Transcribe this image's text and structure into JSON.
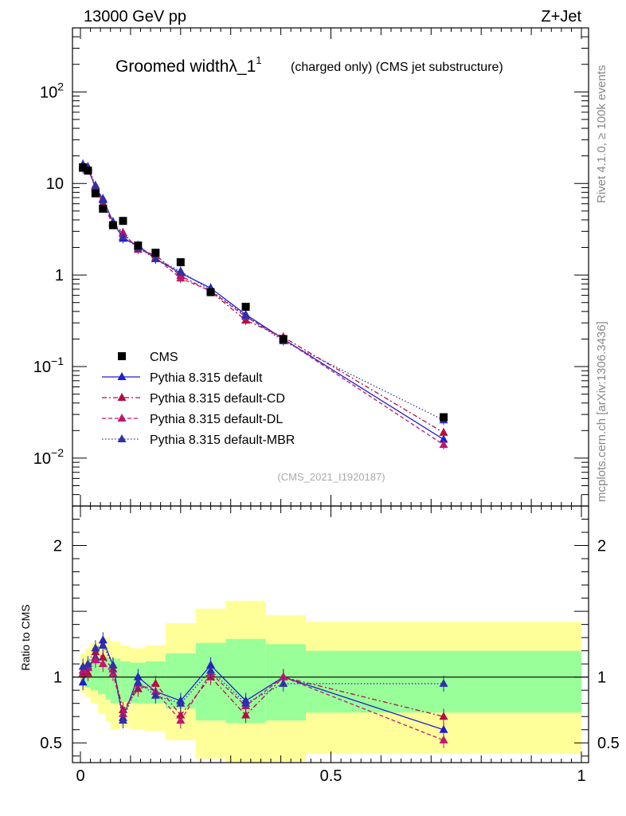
{
  "header": {
    "left": "13000 GeV pp",
    "right": "Z+Jet"
  },
  "title": {
    "main": "Groomed widthλ_1",
    "sup": "1",
    "sub": "(charged only) (CMS jet substructure)"
  },
  "side_labels": {
    "top": "Rivet 4.1.0, ≥ 100k events",
    "bottom": "mcplots.cern.ch [arXiv:1306.3436]"
  },
  "analysis_id": "(CMS_2021_I1920187)",
  "colors": {
    "cms": "#000000",
    "default": "#1f1fcc",
    "cd": "#b01040",
    "dl": "#c01870",
    "mbr": "#3030a8",
    "band_yellow": "#ffff99",
    "band_green": "#99ff99"
  },
  "chart_data": [
    {
      "type": "scatter",
      "panel": "main",
      "ylog": true,
      "xlim": [
        0,
        1
      ],
      "ylim": [
        0.003,
        500
      ],
      "y_tick_labels": [
        "10^-2",
        "10^-1",
        "1",
        "10",
        "10^2"
      ],
      "x": [
        0.005,
        0.015,
        0.03,
        0.045,
        0.065,
        0.085,
        0.115,
        0.15,
        0.2,
        0.26,
        0.33,
        0.405,
        0.725
      ],
      "series": [
        {
          "name": "CMS",
          "style": "square",
          "values": [
            15.0,
            13.8,
            7.8,
            5.3,
            3.5,
            3.9,
            2.1,
            1.75,
            1.38,
            0.65,
            0.45,
            0.2,
            0.028
          ]
        },
        {
          "name": "Pythia 8.315 default",
          "style": "solid",
          "values": [
            14.5,
            15.0,
            9.0,
            6.8,
            3.8,
            2.5,
            2.1,
            1.5,
            1.05,
            0.72,
            0.37,
            0.2,
            0.016
          ]
        },
        {
          "name": "Pythia 8.315 default-CD",
          "style": "dashdot",
          "values": [
            15.5,
            14.2,
            9.3,
            6.1,
            3.7,
            2.9,
            1.9,
            1.65,
            0.98,
            0.66,
            0.32,
            0.21,
            0.019
          ]
        },
        {
          "name": "Pythia 8.315 default-DL",
          "style": "dashed",
          "values": [
            15.8,
            14.8,
            8.8,
            5.8,
            3.6,
            2.8,
            2.0,
            1.55,
            0.92,
            0.67,
            0.35,
            0.2,
            0.014
          ]
        },
        {
          "name": "Pythia 8.315 default-MBR",
          "style": "dotted",
          "values": [
            16.2,
            15.2,
            9.5,
            6.6,
            3.8,
            2.6,
            2.0,
            1.5,
            1.1,
            0.68,
            0.36,
            0.19,
            0.026
          ]
        }
      ]
    },
    {
      "type": "scatter",
      "panel": "ratio",
      "ylabel": "Ratio to CMS",
      "xlim": [
        0,
        1
      ],
      "ylim": [
        0.35,
        2.3
      ],
      "x_tick_labels": [
        "0",
        "0.5",
        "1"
      ],
      "y_tick_labels": [
        "0.5",
        "1",
        "2"
      ],
      "x": [
        0.005,
        0.015,
        0.03,
        0.045,
        0.065,
        0.085,
        0.115,
        0.15,
        0.2,
        0.26,
        0.33,
        0.405,
        0.725
      ],
      "series": [
        {
          "name": "Pythia 8.315 default",
          "style": "solid",
          "values": [
            0.96,
            1.08,
            1.15,
            1.28,
            1.09,
            0.69,
            1.0,
            0.89,
            0.82,
            1.09,
            0.82,
            1.0,
            0.6
          ]
        },
        {
          "name": "Pythia 8.315 default-CD",
          "style": "dashdot",
          "values": [
            1.03,
            1.03,
            1.19,
            1.15,
            1.06,
            0.75,
            0.91,
            0.95,
            0.71,
            1.0,
            0.71,
            1.0,
            0.7
          ]
        },
        {
          "name": "Pythia 8.315 default-DL",
          "style": "dashed",
          "values": [
            1.05,
            1.07,
            1.13,
            1.1,
            1.03,
            0.72,
            0.95,
            0.89,
            0.67,
            1.03,
            0.78,
            1.0,
            0.52
          ]
        },
        {
          "name": "Pythia 8.315 default-MBR",
          "style": "dotted",
          "values": [
            1.08,
            1.1,
            1.22,
            1.24,
            1.09,
            0.67,
            0.96,
            0.86,
            0.8,
            1.05,
            0.8,
            0.95,
            0.95
          ]
        }
      ],
      "bands": {
        "edges": [
          0,
          0.01,
          0.02,
          0.035,
          0.05,
          0.06,
          0.08,
          0.1,
          0.13,
          0.17,
          0.23,
          0.29,
          0.37,
          0.45,
          1.0
        ],
        "yellow_low": [
          0.88,
          0.85,
          0.8,
          0.72,
          0.66,
          0.6,
          0.62,
          0.6,
          0.59,
          0.52,
          0.38,
          0.34,
          0.36,
          0.42
        ],
        "yellow_high": [
          1.18,
          1.22,
          1.26,
          1.28,
          1.3,
          1.27,
          1.24,
          1.22,
          1.24,
          1.41,
          1.52,
          1.58,
          1.47,
          1.42
        ],
        "green_low": [
          0.94,
          0.92,
          0.9,
          0.87,
          0.83,
          0.8,
          0.81,
          0.8,
          0.8,
          0.76,
          0.67,
          0.65,
          0.67,
          0.73
        ],
        "green_high": [
          1.09,
          1.11,
          1.13,
          1.14,
          1.15,
          1.14,
          1.12,
          1.11,
          1.12,
          1.18,
          1.26,
          1.29,
          1.25,
          1.2
        ]
      }
    }
  ]
}
